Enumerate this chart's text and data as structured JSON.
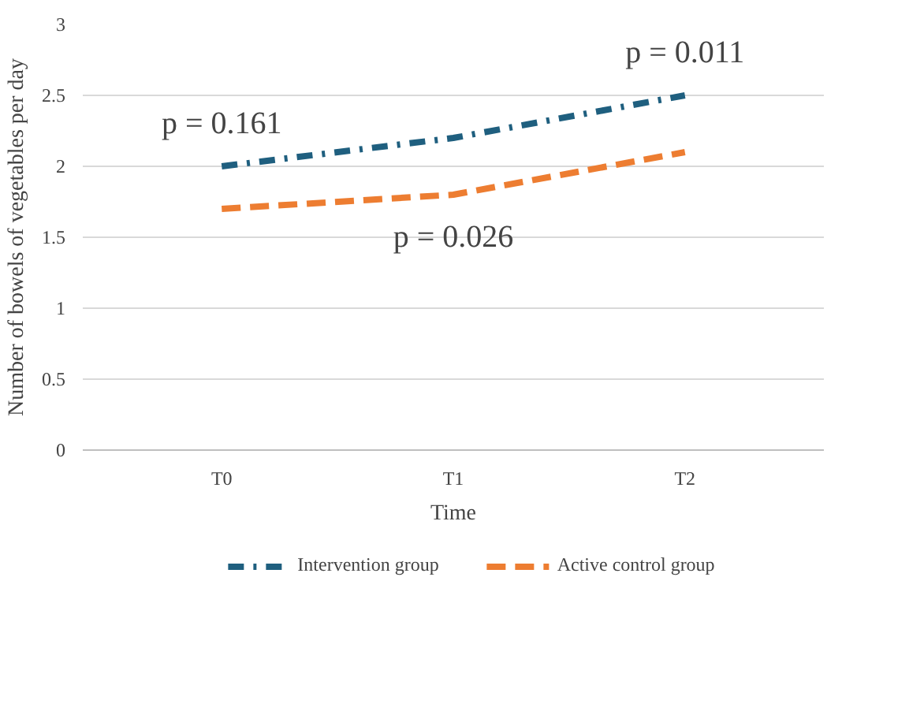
{
  "chart_data": {
    "type": "line",
    "xlabel": "Time",
    "ylabel": "Number of bowels of vegetables per day",
    "categories": [
      "T0",
      "T1",
      "T2"
    ],
    "series": [
      {
        "name": "Intervention group",
        "color": "#1f5f7f",
        "values": [
          2.0,
          2.2,
          2.5
        ],
        "line_style": "dashdot"
      },
      {
        "name": "Active control group",
        "color": "#ed7d31",
        "values": [
          1.7,
          1.8,
          2.1
        ],
        "line_style": "dashed"
      }
    ],
    "ylim": [
      0,
      3
    ],
    "yticks": [
      0,
      {
        "value": 0.5,
        "label": "0.5"
      },
      1,
      {
        "value": 1.5,
        "label": "1.5"
      },
      2,
      {
        "value": 2.5,
        "label": "2.5"
      },
      3
    ],
    "grid": "y",
    "legend": "bottom",
    "marker": "none",
    "annotations": [
      "p = 0.161",
      "p = 0.026",
      "p = 0.011"
    ]
  }
}
